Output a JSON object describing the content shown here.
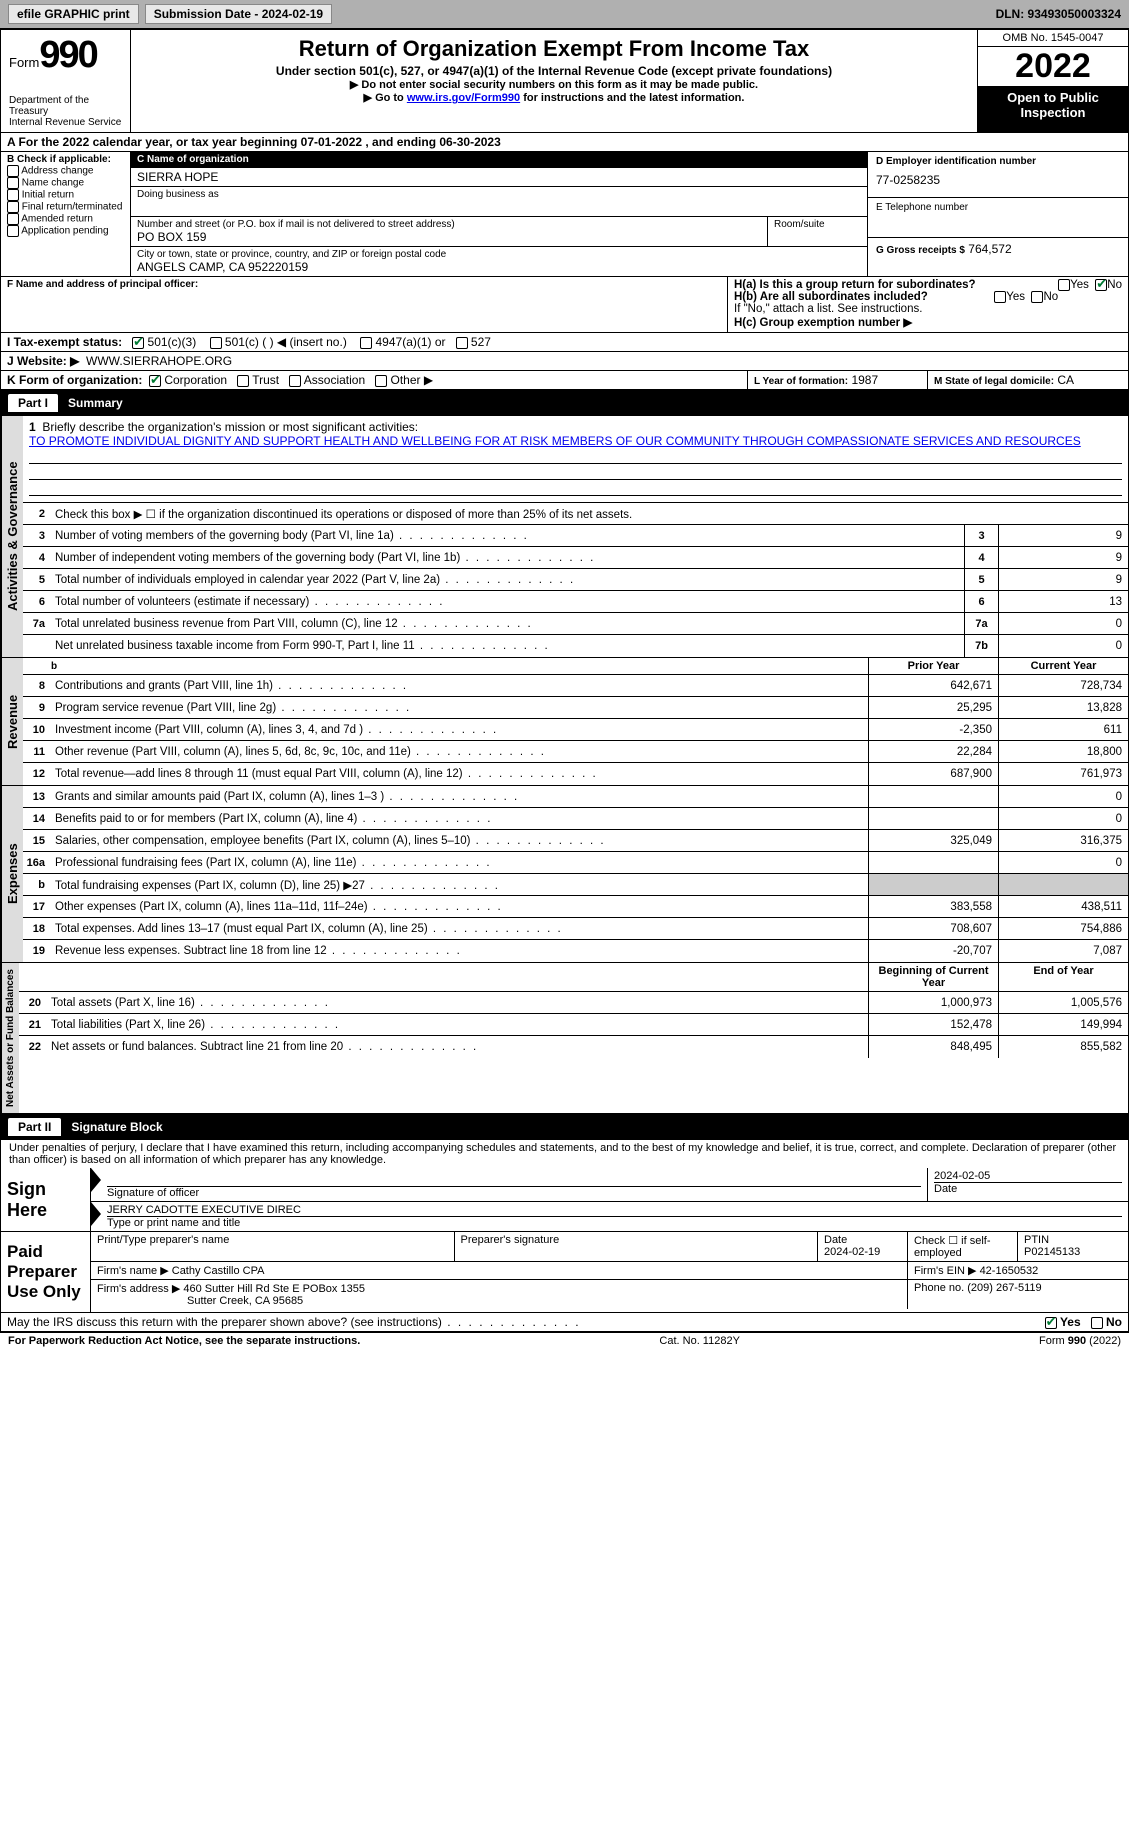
{
  "topbar": {
    "efile": "efile GRAPHIC print",
    "submission": "Submission Date - 2024-02-19",
    "dln": "DLN: 93493050003324"
  },
  "header": {
    "form_word": "Form",
    "form_num": "990",
    "dept": "Department of the Treasury",
    "irs": "Internal Revenue Service",
    "title": "Return of Organization Exempt From Income Tax",
    "subtitle": "Under section 501(c), 527, or 4947(a)(1) of the Internal Revenue Code (except private foundations)",
    "note1": "▶ Do not enter social security numbers on this form as it may be made public.",
    "note2_pre": "▶ Go to ",
    "note2_link": "www.irs.gov/Form990",
    "note2_post": " for instructions and the latest information.",
    "omb": "OMB No. 1545-0047",
    "year": "2022",
    "inspect": "Open to Public Inspection"
  },
  "periodA": "A For the 2022 calendar year, or tax year beginning 07-01-2022   , and ending 06-30-2023",
  "sectionB": {
    "label": "B Check if applicable:",
    "opts": [
      "Address change",
      "Name change",
      "Initial return",
      "Final return/terminated",
      "Amended return",
      "Application pending"
    ]
  },
  "sectionC": {
    "name_label": "C Name of organization",
    "name": "SIERRA HOPE",
    "dba_label": "Doing business as",
    "addr_label": "Number and street (or P.O. box if mail is not delivered to street address)",
    "addr": "PO BOX 159",
    "room_label": "Room/suite",
    "city_label": "City or town, state or province, country, and ZIP or foreign postal code",
    "city": "ANGELS CAMP, CA  952220159"
  },
  "sectionD": {
    "label": "D Employer identification number",
    "value": "77-0258235"
  },
  "sectionE": {
    "label": "E Telephone number",
    "value": ""
  },
  "sectionG": {
    "label": "G Gross receipts $",
    "value": "764,572"
  },
  "sectionF": {
    "label": "F Name and address of principal officer:"
  },
  "sectionH": {
    "ha": "H(a)  Is this a group return for subordinates?",
    "hb": "H(b)  Are all subordinates included?",
    "hb_note": "If \"No,\" attach a list. See instructions.",
    "hc": "H(c)  Group exemption number ▶",
    "yes": "Yes",
    "no": "No"
  },
  "sectionI": {
    "label": "I   Tax-exempt status:",
    "o1": "501(c)(3)",
    "o2": "501(c) (  ) ◀ (insert no.)",
    "o3": "4947(a)(1) or",
    "o4": "527"
  },
  "sectionJ": {
    "label": "J   Website: ▶",
    "value": "WWW.SIERRAHOPE.ORG"
  },
  "sectionK": {
    "label": "K Form of organization:",
    "corp": "Corporation",
    "trust": "Trust",
    "assoc": "Association",
    "other": "Other ▶"
  },
  "sectionL": {
    "label": "L Year of formation:",
    "value": "1987"
  },
  "sectionM": {
    "label": "M State of legal domicile:",
    "value": "CA"
  },
  "part1": {
    "label": "Part I",
    "title": "Summary"
  },
  "part2": {
    "label": "Part II",
    "title": "Signature Block"
  },
  "vtabs": {
    "act": "Activities & Governance",
    "rev": "Revenue",
    "exp": "Expenses",
    "net": "Net Assets or Fund Balances"
  },
  "summary": {
    "l1_label": "Briefly describe the organization's mission or most significant activities:",
    "l1_text": "TO PROMOTE INDIVIDUAL DIGNITY AND SUPPORT HEALTH AND WELLBEING FOR AT RISK MEMBERS OF OUR COMMUNITY THROUGH COMPASSIONATE SERVICES AND RESOURCES",
    "l2": "Check this box ▶ ☐ if the organization discontinued its operations or disposed of more than 25% of its net assets.",
    "lines_single": [
      {
        "n": "3",
        "d": "Number of voting members of the governing body (Part VI, line 1a)",
        "box": "3",
        "v": "9"
      },
      {
        "n": "4",
        "d": "Number of independent voting members of the governing body (Part VI, line 1b)",
        "box": "4",
        "v": "9"
      },
      {
        "n": "5",
        "d": "Total number of individuals employed in calendar year 2022 (Part V, line 2a)",
        "box": "5",
        "v": "9"
      },
      {
        "n": "6",
        "d": "Total number of volunteers (estimate if necessary)",
        "box": "6",
        "v": "13"
      },
      {
        "n": "7a",
        "d": "Total unrelated business revenue from Part VIII, column (C), line 12",
        "box": "7a",
        "v": "0"
      },
      {
        "n": "",
        "d": "Net unrelated business taxable income from Form 990-T, Part I, line 11",
        "box": "7b",
        "v": "0"
      }
    ],
    "prior_label": "Prior Year",
    "current_label": "Current Year",
    "rev_lines": [
      {
        "n": "8",
        "d": "Contributions and grants (Part VIII, line 1h)",
        "p": "642,671",
        "c": "728,734"
      },
      {
        "n": "9",
        "d": "Program service revenue (Part VIII, line 2g)",
        "p": "25,295",
        "c": "13,828"
      },
      {
        "n": "10",
        "d": "Investment income (Part VIII, column (A), lines 3, 4, and 7d )",
        "p": "-2,350",
        "c": "611"
      },
      {
        "n": "11",
        "d": "Other revenue (Part VIII, column (A), lines 5, 6d, 8c, 9c, 10c, and 11e)",
        "p": "22,284",
        "c": "18,800"
      },
      {
        "n": "12",
        "d": "Total revenue—add lines 8 through 11 (must equal Part VIII, column (A), line 12)",
        "p": "687,900",
        "c": "761,973"
      }
    ],
    "exp_lines": [
      {
        "n": "13",
        "d": "Grants and similar amounts paid (Part IX, column (A), lines 1–3 )",
        "p": "",
        "c": "0"
      },
      {
        "n": "14",
        "d": "Benefits paid to or for members (Part IX, column (A), line 4)",
        "p": "",
        "c": "0"
      },
      {
        "n": "15",
        "d": "Salaries, other compensation, employee benefits (Part IX, column (A), lines 5–10)",
        "p": "325,049",
        "c": "316,375"
      },
      {
        "n": "16a",
        "d": "Professional fundraising fees (Part IX, column (A), line 11e)",
        "p": "",
        "c": "0"
      },
      {
        "n": "b",
        "d": "Total fundraising expenses (Part IX, column (D), line 25) ▶27",
        "p": "SHADE",
        "c": "SHADE"
      },
      {
        "n": "17",
        "d": "Other expenses (Part IX, column (A), lines 11a–11d, 11f–24e)",
        "p": "383,558",
        "c": "438,511"
      },
      {
        "n": "18",
        "d": "Total expenses. Add lines 13–17 (must equal Part IX, column (A), line 25)",
        "p": "708,607",
        "c": "754,886"
      },
      {
        "n": "19",
        "d": "Revenue less expenses. Subtract line 18 from line 12",
        "p": "-20,707",
        "c": "7,087"
      }
    ],
    "begin_label": "Beginning of Current Year",
    "end_label": "End of Year",
    "net_lines": [
      {
        "n": "20",
        "d": "Total assets (Part X, line 16)",
        "p": "1,000,973",
        "c": "1,005,576"
      },
      {
        "n": "21",
        "d": "Total liabilities (Part X, line 26)",
        "p": "152,478",
        "c": "149,994"
      },
      {
        "n": "22",
        "d": "Net assets or fund balances. Subtract line 21 from line 20",
        "p": "848,495",
        "c": "855,582"
      }
    ]
  },
  "sig_decl": "Under penalties of perjury, I declare that I have examined this return, including accompanying schedules and statements, and to the best of my knowledge and belief, it is true, correct, and complete. Declaration of preparer (other than officer) is based on all information of which preparer has any knowledge.",
  "sign_here": "Sign Here",
  "sig_officer_label": "Signature of officer",
  "sig_date_label": "Date",
  "sig_date": "2024-02-05",
  "sig_name": "JERRY CADOTTE  EXECUTIVE DIREC",
  "sig_name_label": "Type or print name and title",
  "paid_label": "Paid Preparer Use Only",
  "prep": {
    "print_label": "Print/Type preparer's name",
    "sig_label": "Preparer's signature",
    "date_label": "Date",
    "date": "2024-02-19",
    "check_label": "Check ☐ if self-employed",
    "ptin_label": "PTIN",
    "ptin": "P02145133",
    "firm_name_label": "Firm's name   ▶",
    "firm_name": "Cathy Castillo CPA",
    "firm_ein_label": "Firm's EIN ▶",
    "firm_ein": "42-1650532",
    "firm_addr_label": "Firm's address ▶",
    "firm_addr1": "460 Sutter Hill Rd Ste E POBox 1355",
    "firm_addr2": "Sutter Creek, CA  95685",
    "phone_label": "Phone no.",
    "phone": "(209) 267-5119"
  },
  "discuss": "May the IRS discuss this return with the preparer shown above? (see instructions)",
  "discuss_yes": "Yes",
  "discuss_no": "No",
  "footer": {
    "l": "For Paperwork Reduction Act Notice, see the separate instructions.",
    "c": "Cat. No. 11282Y",
    "r": "Form 990 (2022)"
  }
}
